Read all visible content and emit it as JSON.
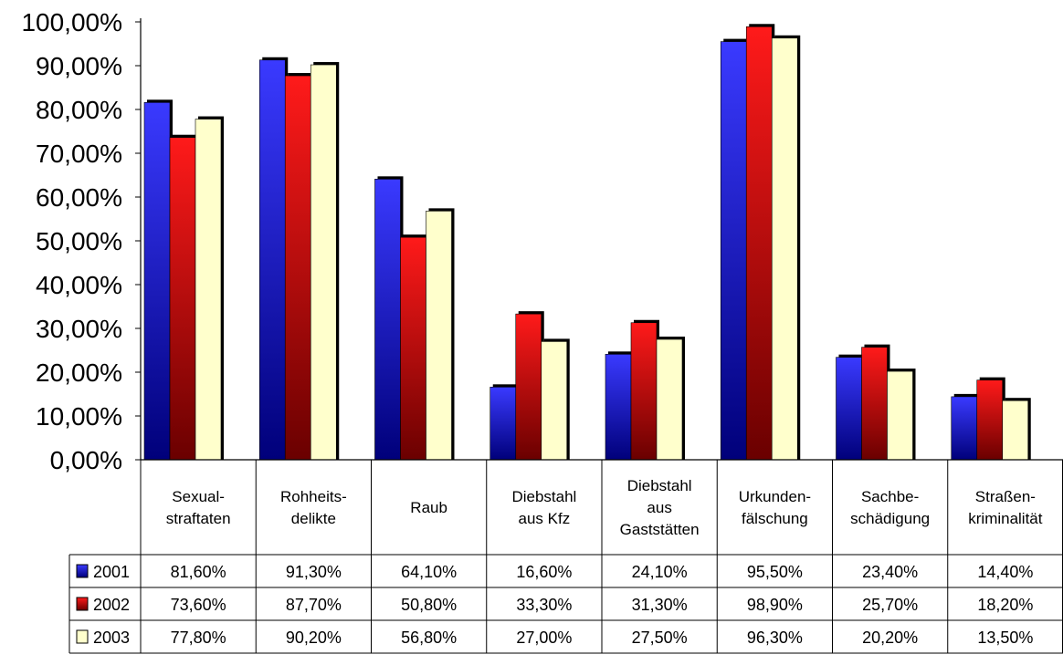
{
  "chart_data": {
    "type": "bar",
    "categories": [
      [
        "Sexual-",
        "straftaten"
      ],
      [
        "Rohheits-",
        "delikte"
      ],
      [
        "Raub"
      ],
      [
        "Diebstahl",
        "aus Kfz"
      ],
      [
        "Diebstahl",
        "aus",
        "Gaststätten"
      ],
      [
        "Urkunden-",
        "fälschung"
      ],
      [
        "Sachbe-",
        "schädigung"
      ],
      [
        "Straßen-",
        "kriminalität"
      ]
    ],
    "series": [
      {
        "name": "2001",
        "color_dark": "#00007a",
        "color_light": "#3a3aff",
        "values": [
          81.6,
          91.3,
          64.1,
          16.6,
          24.1,
          95.5,
          23.4,
          14.4
        ],
        "labels": [
          "81,60%",
          "91,30%",
          "64,10%",
          "16,60%",
          "24,10%",
          "95,50%",
          "23,40%",
          "14,40%"
        ]
      },
      {
        "name": "2002",
        "color_dark": "#6a0000",
        "color_light": "#ff1a1a",
        "values": [
          73.6,
          87.7,
          50.8,
          33.3,
          31.3,
          98.9,
          25.7,
          18.2
        ],
        "labels": [
          "73,60%",
          "87,70%",
          "50,80%",
          "33,30%",
          "31,30%",
          "98,90%",
          "25,70%",
          "18,20%"
        ]
      },
      {
        "name": "2003",
        "color_dark": "#ffffcc",
        "color_light": "#ffffcc",
        "values": [
          77.8,
          90.2,
          56.8,
          27.0,
          27.5,
          96.3,
          20.2,
          13.5
        ],
        "labels": [
          "77,80%",
          "90,20%",
          "56,80%",
          "27,00%",
          "27,50%",
          "96,30%",
          "20,20%",
          "13,50%"
        ]
      }
    ],
    "yticks": [
      "0,00%",
      "10,00%",
      "20,00%",
      "30,00%",
      "40,00%",
      "50,00%",
      "60,00%",
      "70,00%",
      "80,00%",
      "90,00%",
      "100,00%"
    ],
    "ylim": [
      0,
      100
    ],
    "title": "",
    "xlabel": "",
    "ylabel": "",
    "grid": false,
    "legend": "data-table-left"
  }
}
